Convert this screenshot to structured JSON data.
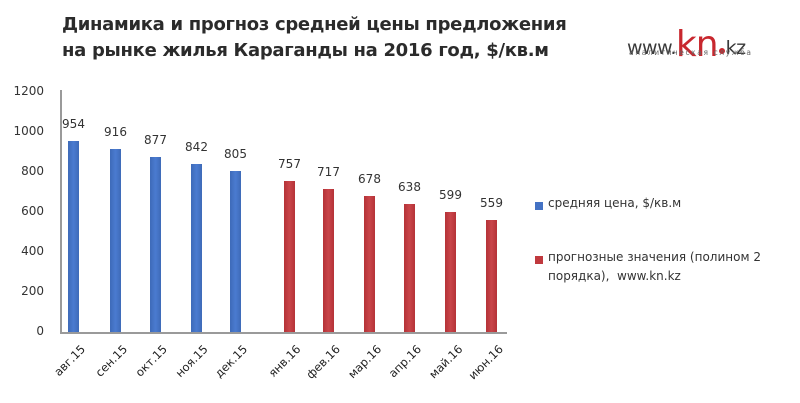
{
  "title": {
    "line1": "Динамика и прогноз средней цены предложения",
    "line2": "на рынке жилья Караганды на 2016 год, $/кв.м"
  },
  "logo": {
    "prefix": "www.",
    "brand": "kn",
    "suffix": "kz",
    "tagline": "аналитическая служба",
    "brand_color": "#c8272e"
  },
  "colors": {
    "actual": "#4472c4",
    "forecast": "#c0393e",
    "axis": "#9a9a9a"
  },
  "legend": {
    "items": [
      {
        "label": "средняя цена, $/кв.м",
        "color": "#4472c4"
      },
      {
        "label": "прогнозные значения (полином 2 порядка), www.kn.kz",
        "color": "#c0393e",
        "line1": "прогнозные значения (полином 2",
        "line2": "порядка),  www.kn.kz"
      }
    ]
  },
  "chart_data": {
    "type": "bar",
    "title": "Динамика и прогноз средней цены предложения на рынке жилья Караганды на 2016 год, $/кв.м",
    "xlabel": "",
    "ylabel": "",
    "ylim": [
      0,
      1200
    ],
    "yticks": [
      "0",
      "200",
      "400",
      "600",
      "800",
      "1000",
      "1200"
    ],
    "grid": false,
    "legend_position": "right",
    "categories": [
      "авг.15",
      "сен.15",
      "окт.15",
      "ноя.15",
      "дек.15",
      "янв.16",
      "фев.16",
      "мар.16",
      "апр.16",
      "май.16",
      "июн.16"
    ],
    "series": [
      {
        "name": "средняя цена, $/кв.м",
        "color": "#4472c4",
        "values": [
          954,
          916,
          877,
          842,
          805,
          null,
          null,
          null,
          null,
          null,
          null
        ]
      },
      {
        "name": "прогнозные значения (полином 2 порядка), www.kn.kz",
        "color": "#c0393e",
        "values": [
          null,
          null,
          null,
          null,
          null,
          757,
          717,
          678,
          638,
          599,
          559
        ]
      }
    ],
    "data_labels": [
      "954",
      "916",
      "877",
      "842",
      "805",
      "757",
      "717",
      "678",
      "638",
      "599",
      "559"
    ]
  }
}
